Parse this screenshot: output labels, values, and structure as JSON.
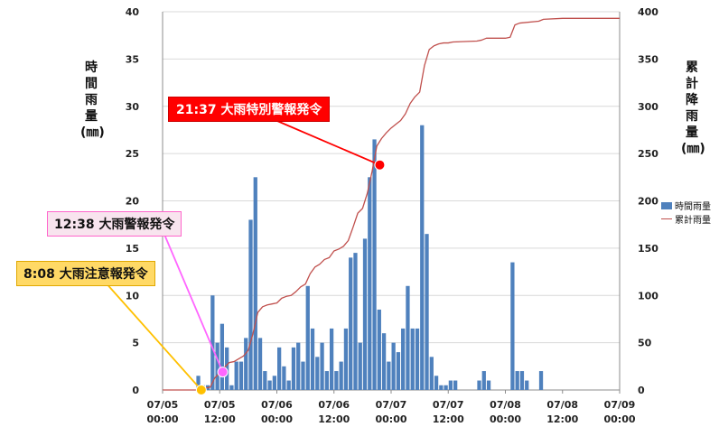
{
  "chart_data": {
    "type": "bar",
    "x_range_hours": [
      0,
      96
    ],
    "x_ticks": [
      {
        "h": 0,
        "date": "07/05",
        "time": "00:00"
      },
      {
        "h": 12,
        "date": "07/05",
        "time": "12:00"
      },
      {
        "h": 24,
        "date": "07/06",
        "time": "00:00"
      },
      {
        "h": 36,
        "date": "07/06",
        "time": "12:00"
      },
      {
        "h": 48,
        "date": "07/07",
        "time": "00:00"
      },
      {
        "h": 60,
        "date": "07/07",
        "time": "12:00"
      },
      {
        "h": 72,
        "date": "07/08",
        "time": "00:00"
      },
      {
        "h": 84,
        "date": "07/08",
        "time": "12:00"
      },
      {
        "h": 96,
        "date": "07/09",
        "time": "00:00"
      }
    ],
    "y_left": {
      "label": [
        "時",
        "間",
        "雨",
        "量",
        "(㎜)"
      ],
      "ylim": [
        0,
        40
      ],
      "ticks": [
        0,
        5,
        10,
        15,
        20,
        25,
        30,
        35,
        40
      ]
    },
    "y_right": {
      "label": [
        "累",
        "計",
        "降",
        "雨",
        "量",
        "(㎜)"
      ],
      "ylim": [
        0,
        400
      ],
      "ticks": [
        0,
        50,
        100,
        150,
        200,
        250,
        300,
        350,
        400
      ]
    },
    "series": [
      {
        "name": "時間雨量",
        "type": "bar",
        "color": "#4f81bd",
        "x_hours": [
          7,
          8,
          9,
          10,
          11,
          12,
          13,
          14,
          15,
          16,
          17,
          18,
          19,
          20,
          21,
          22,
          23,
          24,
          25,
          26,
          27,
          28,
          29,
          30,
          31,
          32,
          33,
          34,
          35,
          36,
          37,
          38,
          39,
          40,
          41,
          42,
          43,
          44,
          45,
          46,
          47,
          48,
          49,
          50,
          51,
          52,
          53,
          54,
          55,
          56,
          57,
          58,
          59,
          60,
          61,
          66,
          67,
          68,
          73,
          74,
          75,
          76,
          79
        ],
        "values": [
          1.5,
          0.5,
          0.5,
          10,
          5,
          7,
          4.5,
          0.5,
          3,
          3,
          5.5,
          18,
          22.5,
          5.5,
          2,
          1,
          1.5,
          4.5,
          2.5,
          1,
          4.5,
          5,
          3,
          11,
          6.5,
          3.5,
          5,
          2,
          6.5,
          2,
          3,
          6.5,
          14,
          14.5,
          5,
          16,
          22.5,
          26.5,
          8.5,
          6,
          3,
          5,
          4,
          6.5,
          11,
          6.5,
          6.5,
          28,
          16.5,
          3.5,
          1.5,
          0.5,
          0.5,
          1,
          1,
          1,
          2,
          1,
          13.5,
          2,
          2,
          1,
          2
        ]
      },
      {
        "name": "累計雨量",
        "type": "line",
        "color": "#c0504d",
        "x_hours": [
          0,
          7,
          8,
          9,
          10,
          11,
          12,
          13,
          14,
          15,
          16,
          17,
          18,
          19,
          20,
          21,
          22,
          23,
          24,
          25,
          26,
          27,
          28,
          29,
          30,
          31,
          32,
          33,
          34,
          35,
          36,
          37,
          38,
          39,
          40,
          41,
          42,
          43,
          44,
          45,
          46,
          47,
          48,
          49,
          50,
          51,
          52,
          53,
          54,
          55,
          56,
          57,
          58,
          59,
          60,
          61,
          66,
          67,
          68,
          72,
          73,
          74,
          75,
          79,
          80,
          84,
          96
        ],
        "values": [
          0,
          0,
          2,
          2,
          3,
          13,
          18,
          24,
          29,
          30,
          33,
          36,
          42,
          60,
          82,
          88,
          90,
          91,
          92,
          97,
          99,
          100,
          104,
          109,
          112,
          123,
          130,
          133,
          138,
          140,
          147,
          149,
          152,
          158,
          172,
          187,
          192,
          208,
          231,
          258,
          266,
          272,
          277,
          281,
          285,
          292,
          303,
          310,
          315,
          343,
          360,
          364,
          366,
          367,
          367,
          368,
          369,
          370,
          372,
          372,
          373,
          386,
          388,
          390,
          392,
          393,
          393
        ]
      }
    ],
    "legend_position": "right",
    "annotations": [
      {
        "text": "8:08  大雨注意報発令",
        "hour": 8.13,
        "value_left": 0,
        "bg": "#ffd966",
        "border": "#e0a800",
        "line": "#ffc000"
      },
      {
        "text": "12:38  大雨警報発令",
        "hour": 12.63,
        "value_left": 1.9,
        "bg": "#f8e4ee",
        "border": "#ff66cc",
        "line": "#ff66ff"
      },
      {
        "text": "21:37  大雨特別警報発令",
        "hour": 45.62,
        "value_left": 23.8,
        "bg": "#ff0000",
        "border": "#cc0000",
        "line": "#ff0000"
      }
    ]
  }
}
